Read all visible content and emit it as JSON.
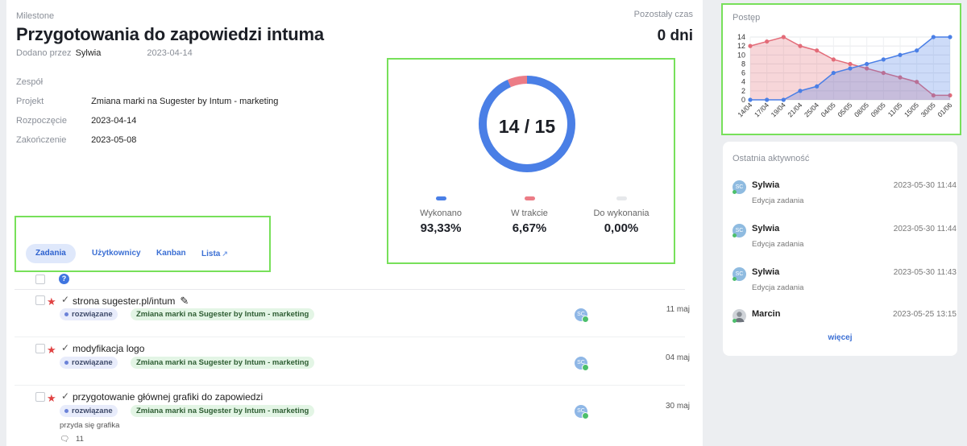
{
  "header": {
    "milestone_label": "Milestone",
    "title": "Przygotowania do zapowiedzi intuma",
    "added_by_label": "Dodano przez",
    "added_by": "Sylwia",
    "added_date": "2023-04-14",
    "remaining_label": "Pozostały czas",
    "remaining_value": "0 dni"
  },
  "info": {
    "team_label": "Zespół",
    "project_label": "Projekt",
    "project_value": "Zmiana marki na Sugester by Intum - marketing",
    "start_label": "Rozpoczęcie",
    "start_value": "2023-04-14",
    "end_label": "Zakończenie",
    "end_value": "2023-05-08"
  },
  "progress": {
    "center_text": "14 / 15",
    "done_fraction": 0.9333,
    "in_progress_fraction": 0.0667,
    "todo_fraction": 0.0,
    "colors": {
      "done": "#4a7fe6",
      "in_progress": "#ec7c86",
      "todo": "#e6e8eb"
    },
    "legend": [
      {
        "name": "Wykonano",
        "pct": "93,33%"
      },
      {
        "name": "W trakcie",
        "pct": "6,67%"
      },
      {
        "name": "Do wykonania",
        "pct": "0,00%"
      }
    ]
  },
  "tabs": [
    {
      "label": "Zadania",
      "active": true
    },
    {
      "label": "Użytkownicy"
    },
    {
      "label": "Kanban"
    },
    {
      "label": "Lista"
    }
  ],
  "tasks": [
    {
      "name": "strona sugester.pl/intum",
      "status": "rozwiązane",
      "project": "Zmiana marki na Sugester by Intum - marketing",
      "avatar": "SC",
      "date": "11 maj",
      "has_edit": true
    },
    {
      "name": "modyfikacja logo",
      "status": "rozwiązane",
      "project": "Zmiana marki na Sugester by Intum - marketing",
      "avatar": "SC",
      "date": "04 maj"
    },
    {
      "name": "przygotowanie głównej grafiki do zapowiedzi",
      "status": "rozwiązane",
      "project": "Zmiana marki na Sugester by Intum - marketing",
      "avatar": "SC",
      "date": "30 maj",
      "description": "przyda się grafika",
      "comments": "11"
    }
  ],
  "chart_title": "Postęp",
  "chart_data": {
    "type": "area",
    "categories": [
      "14/04",
      "17/04",
      "19/04",
      "21/04",
      "25/04",
      "04/05",
      "05/05",
      "08/05",
      "09/05",
      "11/05",
      "15/05",
      "30/05",
      "01/06"
    ],
    "ylim": [
      0,
      14
    ],
    "yticks": [
      0,
      2,
      4,
      6,
      8,
      10,
      12,
      14
    ],
    "series": [
      {
        "color": "#e36b78",
        "values": [
          12,
          13,
          14,
          12,
          11,
          9,
          8,
          7,
          6,
          5,
          4,
          1,
          1
        ]
      },
      {
        "color": "#4a7fe6",
        "values": [
          0,
          0,
          0,
          2,
          3,
          6,
          7,
          8,
          9,
          10,
          11,
          14,
          14
        ]
      }
    ],
    "grid": true
  },
  "activity": {
    "title": "Ostatnia aktywność",
    "items": [
      {
        "user": "Sylwia",
        "initials": "SC",
        "when": "2023-05-30 11:44",
        "what": "Edycja zadania"
      },
      {
        "user": "Sylwia",
        "initials": "SC",
        "when": "2023-05-30 11:44",
        "what": "Edycja zadania"
      },
      {
        "user": "Sylwia",
        "initials": "SC",
        "when": "2023-05-30 11:43",
        "what": "Edycja zadania"
      },
      {
        "user": "Marcin",
        "initials": "",
        "when": "2023-05-25 13:15",
        "what": ""
      }
    ],
    "more": "więcej"
  }
}
